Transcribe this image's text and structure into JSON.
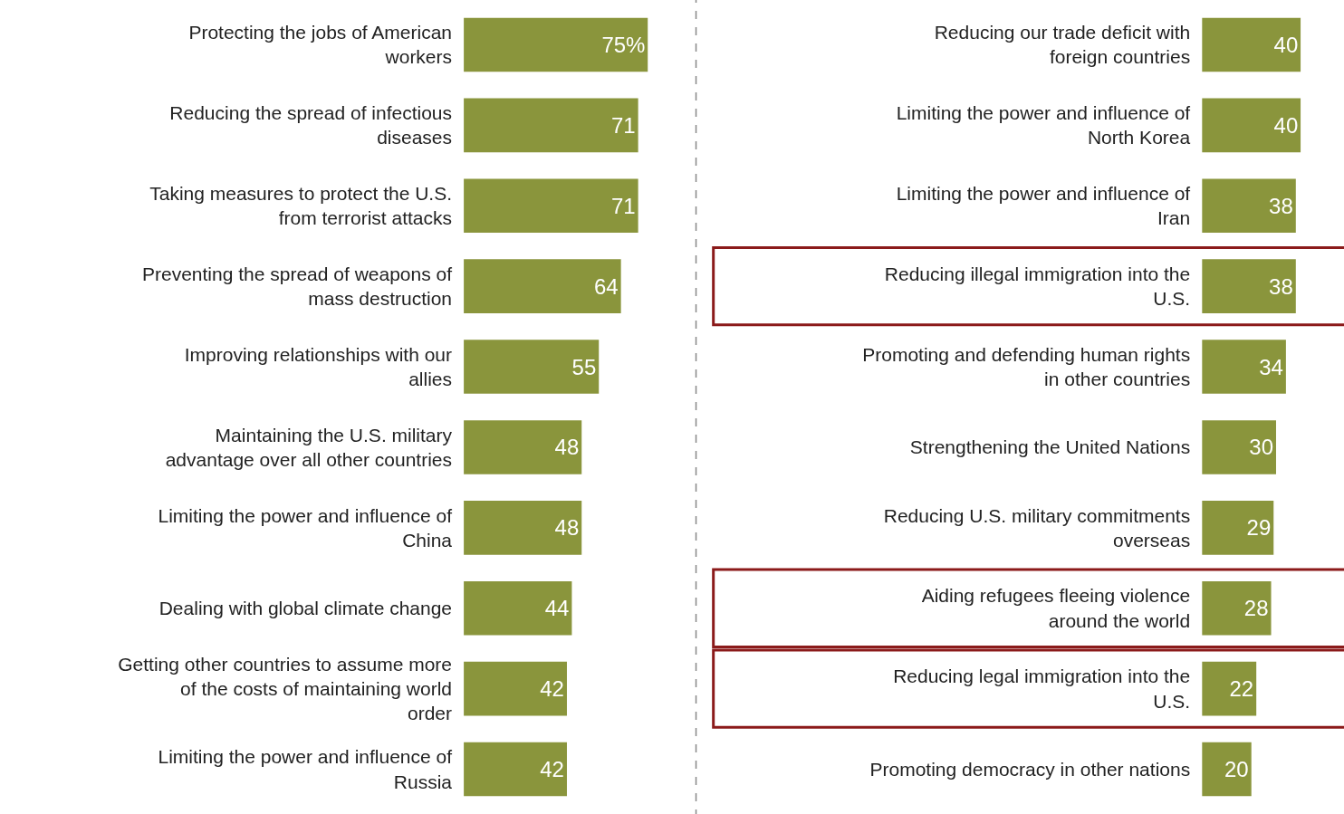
{
  "chart_data": [
    {
      "type": "bar",
      "orientation": "horizontal",
      "color": "#8a953c",
      "categories": [
        "Protecting the jobs of American workers",
        "Reducing the spread of infectious diseases",
        "Taking measures to protect the U.S. from terrorist attacks",
        "Preventing the spread of weapons of mass destruction",
        "Improving relationships with our allies",
        "Maintaining the U.S. military advantage over all other countries",
        "Limiting the power and influence of China",
        "Dealing with global climate change",
        "Getting other countries to assume more of the costs of maintaining world order",
        "Limiting the power and influence of Russia"
      ],
      "values": [
        75,
        71,
        71,
        64,
        55,
        48,
        48,
        44,
        42,
        42
      ],
      "value_labels": [
        "75%",
        "71",
        "71",
        "64",
        "55",
        "48",
        "48",
        "44",
        "42",
        "42"
      ]
    },
    {
      "type": "bar",
      "orientation": "horizontal",
      "color": "#8a953c",
      "categories": [
        "Reducing our trade deficit with foreign countries",
        "Limiting the power and influence of North Korea",
        "Limiting the power and influence of Iran",
        "Reducing illegal immigration into the U.S.",
        "Promoting and defending human rights in other countries",
        "Strengthening the United Nations",
        "Reducing U.S. military commitments overseas",
        "Aiding refugees fleeing violence around the world",
        "Reducing legal immigration into the U.S.",
        "Promoting democracy in other nations"
      ],
      "values": [
        40,
        40,
        38,
        38,
        34,
        30,
        29,
        28,
        22,
        20
      ],
      "data_labels": true
    }
  ]
}
